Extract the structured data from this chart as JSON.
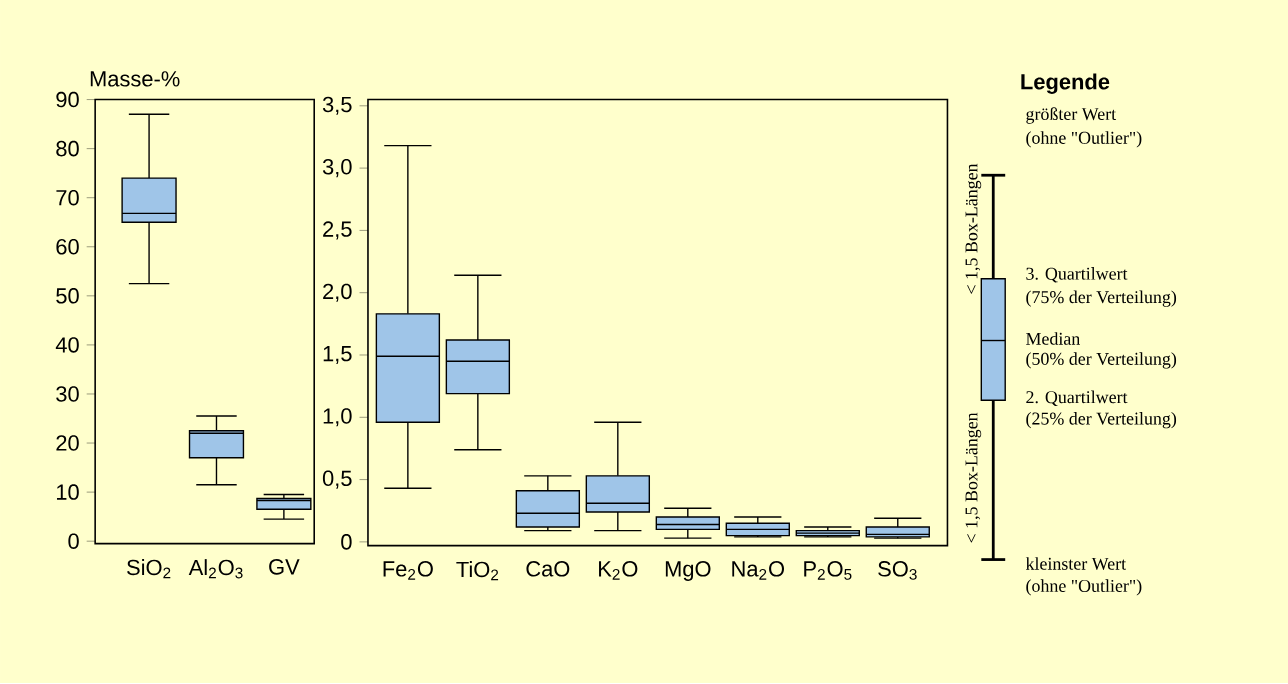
{
  "chart_data": [
    {
      "type": "box",
      "ylabel": "Masse-%",
      "color": "#9fc5e8",
      "categories": [
        "SiO$_{2}$",
        "Al$_{2}$O$_{3}$",
        "GV"
      ],
      "boxes": [
        {
          "low": 52.5,
          "q1": 65,
          "median": 66.8,
          "q3": 74,
          "high": 87
        },
        {
          "low": 11.5,
          "q1": 17,
          "median": 22,
          "q3": 22.5,
          "high": 25.5
        },
        {
          "low": 4.5,
          "q1": 6.5,
          "median": 8.3,
          "q3": 8.7,
          "high": 9.5
        }
      ],
      "ylim": [
        -0.5,
        90
      ],
      "yticks": [
        0,
        10,
        20,
        30,
        40,
        50,
        60,
        70,
        80,
        90
      ]
    },
    {
      "type": "box",
      "color": "#9fc5e8",
      "categories": [
        "Fe$_{2}$O",
        "TiO$_{2}$",
        "CaO",
        "K$_{2}$O",
        "MgO",
        "Na$_{2}$O",
        "P$_{2}$O$_{5}$",
        "SO$_{3}$"
      ],
      "boxes": [
        {
          "low": 0.43,
          "q1": 0.96,
          "median": 1.49,
          "q3": 1.83,
          "high": 3.18
        },
        {
          "low": 0.74,
          "q1": 1.19,
          "median": 1.45,
          "q3": 1.62,
          "high": 2.14
        },
        {
          "low": 0.09,
          "q1": 0.12,
          "median": 0.23,
          "q3": 0.41,
          "high": 0.53
        },
        {
          "low": 0.09,
          "q1": 0.24,
          "median": 0.31,
          "q3": 0.53,
          "high": 0.96
        },
        {
          "low": 0.03,
          "q1": 0.1,
          "median": 0.14,
          "q3": 0.2,
          "high": 0.27
        },
        {
          "low": 0.04,
          "q1": 0.05,
          "median": 0.1,
          "q3": 0.15,
          "high": 0.2
        },
        {
          "low": 0.04,
          "q1": 0.05,
          "median": 0.07,
          "q3": 0.09,
          "high": 0.12
        },
        {
          "low": 0.03,
          "q1": 0.04,
          "median": 0.06,
          "q3": 0.12,
          "high": 0.19
        }
      ],
      "ylim": [
        -0.03,
        3.55
      ],
      "yticks": [
        0,
        {
          "value": 0.5,
          "label": "0,5"
        },
        {
          "value": 1,
          "label": "1,0"
        },
        {
          "value": 1.5,
          "label": "1,5"
        },
        {
          "value": 2,
          "label": "2,0"
        },
        {
          "value": 2.5,
          "label": "2,5"
        },
        {
          "value": 3,
          "label": "3,0"
        },
        {
          "value": 3.5,
          "label": "3,5"
        }
      ]
    },
    {
      "type": "other",
      "title": "Legende",
      "annotations": [
        "< 1,5 Box-Längen",
        "< 1,5 Box-Längen",
        "größter Wert",
        "(ohne \"Outlier\")",
        "3. Quartilwert",
        "(75% der Verteilung)",
        "Median",
        "(50% der Verteilung)",
        "2. Quartilwert",
        "(25% der Verteilung)",
        "kleinster Wert",
        "(ohne \"Outlier\")"
      ]
    }
  ]
}
